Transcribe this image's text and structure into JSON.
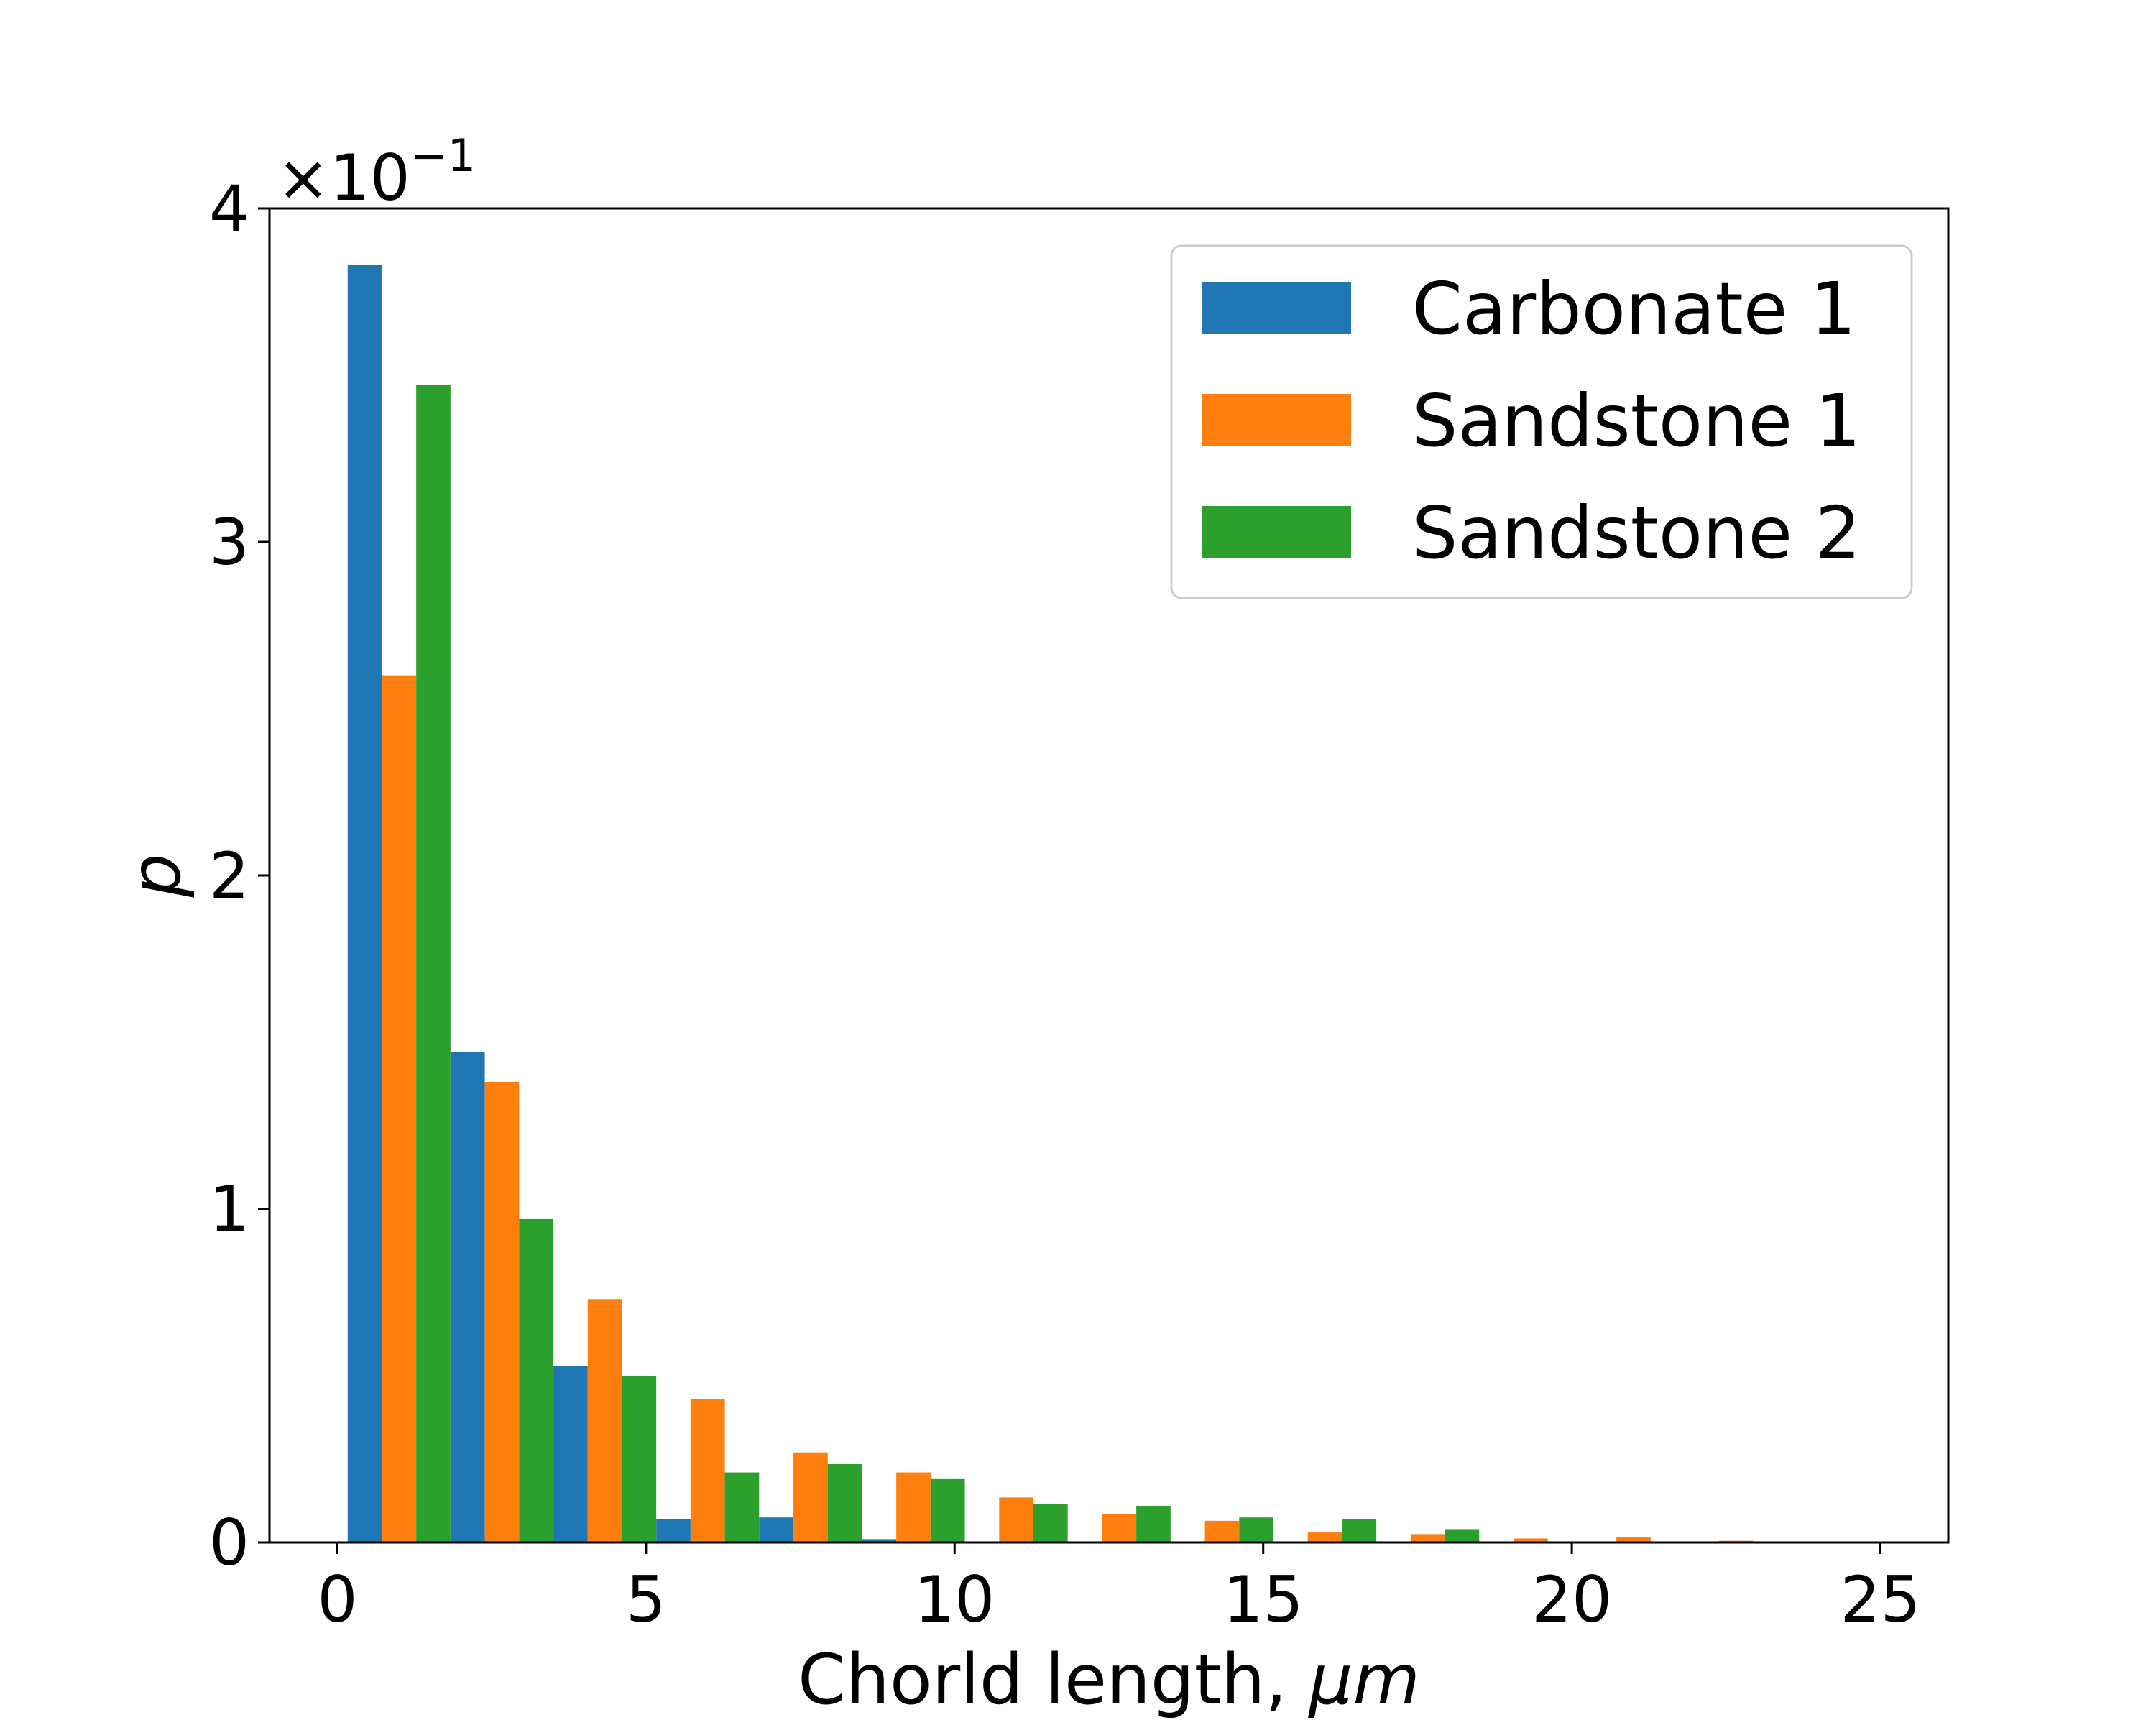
{
  "chart_data": {
    "type": "bar",
    "xlabel_text": "Chorld length, ",
    "xlabel_unit": "μm",
    "ylabel": "p",
    "y_multiplier_base": "×10",
    "y_multiplier_exp": "−1",
    "xlim": [
      -1.1,
      26.1
    ],
    "ylim": [
      0,
      4
    ],
    "x_ticks": [
      0,
      5,
      10,
      15,
      20,
      25
    ],
    "y_ticks": [
      0,
      1,
      2,
      3,
      4
    ],
    "bin_width": 1.666,
    "bin_starts": [
      0.1667,
      1.8333,
      3.5,
      5.1667,
      6.8333,
      8.5,
      10.1667,
      11.8333,
      13.5,
      15.1667,
      16.8333,
      18.5,
      20.1667,
      21.8333,
      23.5
    ],
    "legend_position": "upper-right",
    "grid": false,
    "series": [
      {
        "name": "Carbonate 1",
        "color": "#1f77b4",
        "values": [
          3.83,
          1.47,
          0.53,
          0.07,
          0.075,
          0.01,
          0,
          0,
          0,
          0,
          0,
          0,
          0,
          0,
          0
        ]
      },
      {
        "name": "Sandstone 1",
        "color": "#ff7f0e",
        "values": [
          2.6,
          1.38,
          0.73,
          0.43,
          0.27,
          0.21,
          0.135,
          0.085,
          0.065,
          0.03,
          0.025,
          0.012,
          0.015,
          0.005,
          0
        ]
      },
      {
        "name": "Sandstone 2",
        "color": "#2ca02c",
        "values": [
          3.47,
          0.97,
          0.5,
          0.21,
          0.235,
          0.19,
          0.115,
          0.11,
          0.075,
          0.07,
          0.04,
          0,
          0,
          0,
          0
        ]
      }
    ]
  }
}
